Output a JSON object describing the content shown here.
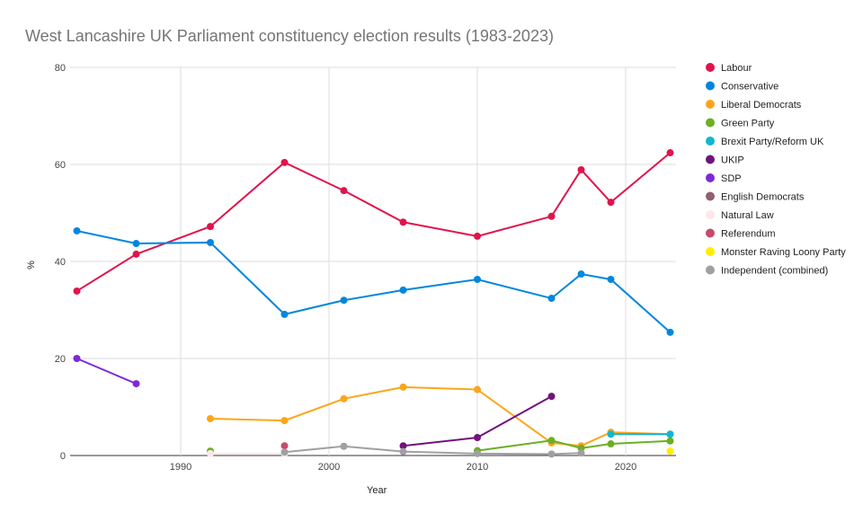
{
  "chart_data": {
    "type": "line",
    "title": "West Lancashire UK Parliament constituency election results (1983-2023)",
    "xlabel": "Year",
    "ylabel": "%",
    "xlim": [
      1983,
      2023
    ],
    "ylim": [
      0,
      80
    ],
    "xticks": [
      1990,
      2000,
      2010,
      2020
    ],
    "yticks": [
      0,
      20,
      40,
      60,
      80
    ],
    "grid": true,
    "legend": "right",
    "series": [
      {
        "name": "Labour",
        "color": "#e0144c",
        "points": [
          [
            1983,
            33.9
          ],
          [
            1987,
            41.5
          ],
          [
            1992,
            47.2
          ],
          [
            1997,
            60.4
          ],
          [
            2001,
            54.6
          ],
          [
            2005,
            48.1
          ],
          [
            2010,
            45.2
          ],
          [
            2015,
            49.3
          ],
          [
            2017,
            58.9
          ],
          [
            2019,
            52.2
          ],
          [
            2023,
            62.4
          ]
        ]
      },
      {
        "name": "Conservative",
        "color": "#0087dc",
        "points": [
          [
            1983,
            46.3
          ],
          [
            1987,
            43.7
          ],
          [
            1992,
            43.9
          ],
          [
            1997,
            29.1
          ],
          [
            2001,
            32.0
          ],
          [
            2005,
            34.1
          ],
          [
            2010,
            36.3
          ],
          [
            2015,
            32.4
          ],
          [
            2017,
            37.4
          ],
          [
            2019,
            36.3
          ],
          [
            2023,
            25.4
          ]
        ]
      },
      {
        "name": "Liberal Democrats",
        "color": "#faa61a",
        "points": [
          [
            1992,
            7.6
          ],
          [
            1997,
            7.2
          ],
          [
            2001,
            11.7
          ],
          [
            2005,
            14.1
          ],
          [
            2010,
            13.6
          ],
          [
            2015,
            2.6
          ],
          [
            2017,
            2.0
          ],
          [
            2019,
            4.8
          ],
          [
            2023,
            4.4
          ]
        ]
      },
      {
        "name": "Green Party",
        "color": "#6ab023",
        "points": [
          [
            1992,
            0.9
          ],
          null,
          [
            2010,
            1.0
          ],
          [
            2015,
            3.1
          ],
          [
            2017,
            1.5
          ],
          [
            2019,
            2.4
          ],
          [
            2023,
            3.0
          ]
        ]
      },
      {
        "name": "Brexit Party/Reform UK",
        "color": "#12b6cf",
        "points": [
          [
            2019,
            4.4
          ],
          [
            2023,
            4.4
          ]
        ]
      },
      {
        "name": "UKIP",
        "color": "#70147a",
        "points": [
          [
            2005,
            2.0
          ],
          [
            2010,
            3.7
          ],
          [
            2015,
            12.2
          ]
        ]
      },
      {
        "name": "SDP",
        "color": "#7d2ad4",
        "points": [
          [
            1983,
            20.0
          ],
          [
            1987,
            14.8
          ]
        ]
      },
      {
        "name": "English Democrats",
        "color": "#915f6d",
        "points": []
      },
      {
        "name": "Natural Law",
        "color": "#fde7ea",
        "points": [
          [
            1992,
            0.4
          ],
          [
            1997,
            0.4
          ]
        ]
      },
      {
        "name": "Referendum",
        "color": "#c94a6a",
        "points": [
          [
            1997,
            2.0
          ]
        ]
      },
      {
        "name": "Monster Raving Loony Party",
        "color": "#ffee00",
        "points": [
          [
            2023,
            0.9
          ]
        ]
      },
      {
        "name": "Independent (combined)",
        "color": "#a0a0a0",
        "points": [
          [
            1997,
            0.7
          ],
          [
            2001,
            1.9
          ],
          [
            2005,
            0.8
          ],
          [
            2010,
            0.4
          ],
          [
            2015,
            0.3
          ],
          [
            2017,
            0.5
          ]
        ]
      }
    ]
  }
}
